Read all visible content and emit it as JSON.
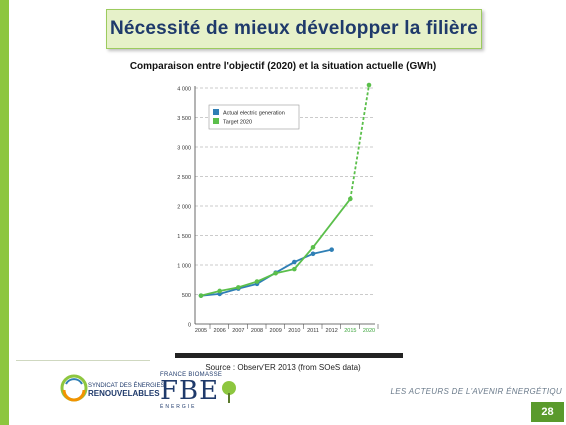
{
  "slide": {
    "title": "Nécessité de mieux développer la filière",
    "source": "Source : Observ'ER 2013 (from SOeS data)",
    "page_number": "28",
    "tagline": "LES ACTEURS DE L'AVENIR ÉNERGÉTIQU"
  },
  "logos": {
    "ser_line1": "SYNDICAT DES ÉNERGIES",
    "ser_line2": "RENOUVELABLES",
    "fbe_top": "FRANCE BIOMASSE",
    "fbe_letters": "FBE",
    "fbe_bottom": "ÉNERGIE"
  },
  "colors": {
    "accent_green": "#8dc63f",
    "actual_series": "#2f7fb5",
    "target_series": "#5bbf4b",
    "title_text": "#1f3a6b"
  },
  "chart_data": {
    "type": "line",
    "title": "Comparaison entre l'objectif (2020) et la situation actuelle (GWh)",
    "categories": [
      "2005",
      "2006",
      "2007",
      "2008",
      "2009",
      "2010",
      "2011",
      "2012",
      "2015",
      "2020"
    ],
    "highlight_categories": [
      "2015",
      "2020"
    ],
    "ylim": [
      0,
      4000
    ],
    "yticks": [
      0,
      500,
      1000,
      1500,
      2000,
      2500,
      3000,
      3500,
      4000
    ],
    "ytick_labels": [
      "0",
      "500",
      "1 000",
      "1 500",
      "2 000",
      "2 500",
      "3 000",
      "3 500",
      "4 000"
    ],
    "grid": true,
    "legend_position": "top-left",
    "series": [
      {
        "name": "Actual electric generation",
        "color": "#2f7fb5",
        "values": [
          480,
          510,
          600,
          680,
          870,
          1050,
          1190,
          1260,
          null,
          null
        ]
      },
      {
        "name": "Target 2020",
        "color": "#5bbf4b",
        "values": [
          480,
          560,
          620,
          720,
          860,
          930,
          1300,
          null,
          2120,
          4050
        ],
        "dashed_from_index": 7
      }
    ]
  }
}
